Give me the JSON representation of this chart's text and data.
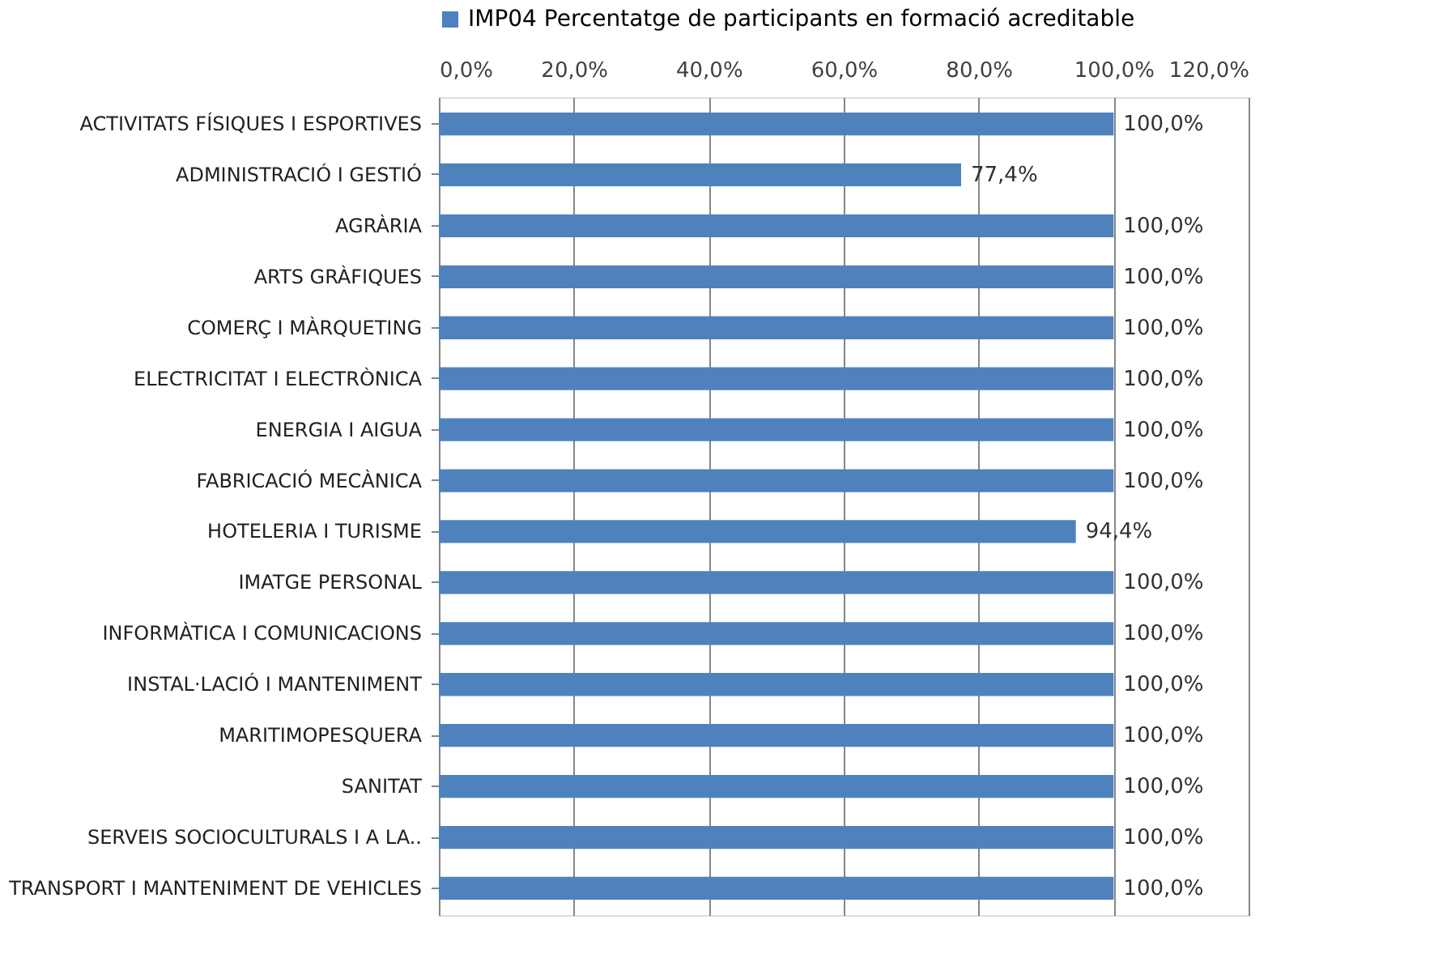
{
  "chart_data": {
    "type": "bar",
    "orientation": "horizontal",
    "legend": "top",
    "grid": "x",
    "categories": [
      "ACTIVITATS FÍSIQUES I ESPORTIVES",
      "ADMINISTRACIÓ I GESTIÓ",
      "AGRÀRIA",
      "ARTS GRÀFIQUES",
      "COMERÇ I MÀRQUETING",
      "ELECTRICITAT I ELECTRÒNICA",
      "ENERGIA I AIGUA",
      "FABRICACIÓ MECÀNICA",
      "HOTELERIA I TURISME",
      "IMATGE PERSONAL",
      "INFORMÀTICA I COMUNICACIONS",
      "INSTAL·LACIÓ I MANTENIMENT",
      "MARITIMOPESQUERA",
      "SANITAT",
      "SERVEIS SOCIOCULTURALS I A LA..",
      "TRANSPORT I MANTENIMENT DE VEHICLES"
    ],
    "series": [
      {
        "name": "IMP04 Percentatge de participants en formació acreditable",
        "color": "#4f81bd",
        "values": [
          100,
          77.4,
          100,
          100,
          100,
          100,
          100,
          100,
          94.4,
          100,
          100,
          100,
          100,
          100,
          100,
          100
        ],
        "value_labels": [
          "100,0%",
          "77,4%",
          "100,0%",
          "100,0%",
          "100,0%",
          "100,0%",
          "100,0%",
          "100,0%",
          "94,4%",
          "100,0%",
          "100,0%",
          "100,0%",
          "100,0%",
          "100,0%",
          "100,0%",
          "100,0%"
        ]
      }
    ],
    "xlim": [
      0,
      120
    ],
    "xticks": [
      {
        "value": 0,
        "label": "0,0%"
      },
      {
        "value": 20,
        "label": "20,0%"
      },
      {
        "value": 40,
        "label": "40,0%"
      },
      {
        "value": 60,
        "label": "60,0%"
      },
      {
        "value": 80,
        "label": "80,0%"
      },
      {
        "value": 100,
        "label": "100,0%"
      },
      {
        "value": 120,
        "label": "120,0%"
      }
    ]
  }
}
